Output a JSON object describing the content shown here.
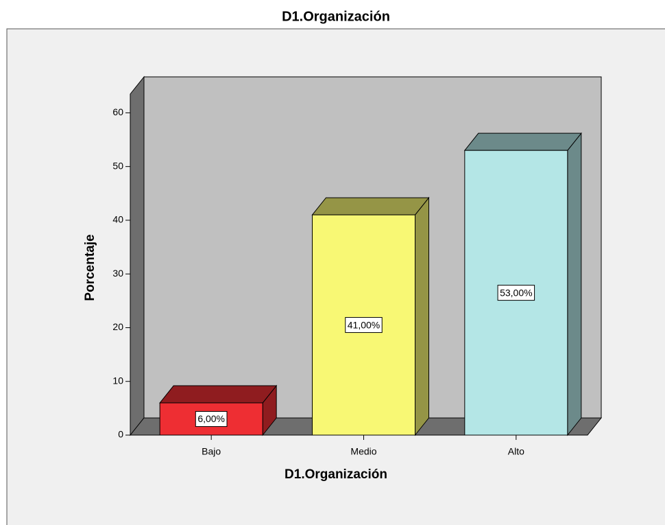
{
  "chart_data": {
    "type": "bar3d",
    "title": "D1.Organización",
    "categories": [
      "Bajo",
      "Medio",
      "Alto"
    ],
    "values": [
      6,
      41,
      53
    ],
    "value_labels": [
      "6,00%",
      "41,00%",
      "53,00%"
    ],
    "colors": [
      "#ee2e33",
      "#f8f874",
      "#b4e6e6"
    ],
    "x_label": "D1.Organización",
    "y_label": "Porcentaje",
    "ylim": [
      0,
      63.5
    ],
    "yticks": [
      0,
      10,
      20,
      30,
      40,
      50,
      60
    ]
  }
}
